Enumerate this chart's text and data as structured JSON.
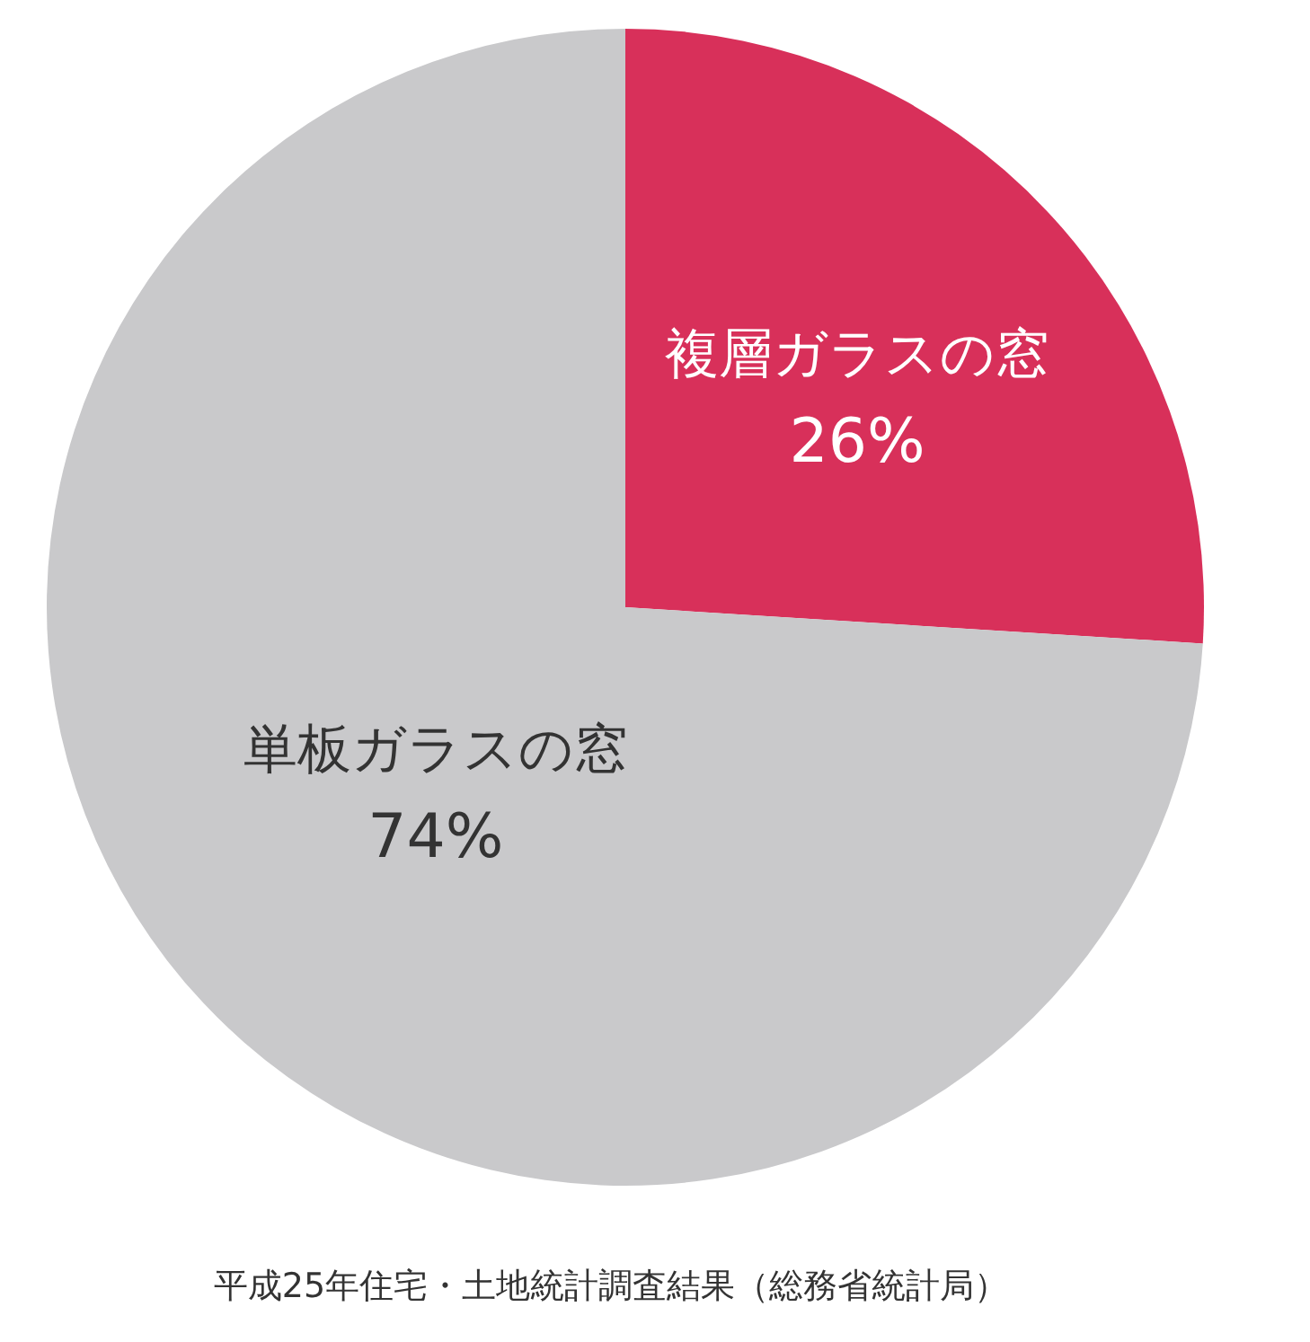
{
  "chart_data": {
    "type": "pie",
    "categories": [
      "複層ガラスの窓",
      "単板ガラスの窓"
    ],
    "values": [
      26,
      74
    ],
    "value_labels": [
      "26%",
      "74%"
    ],
    "colors": [
      "#d8305a",
      "#c9c9cb"
    ],
    "annotations": [
      "平成25年住宅・土地統計調査結果（総務省統計局）"
    ]
  }
}
